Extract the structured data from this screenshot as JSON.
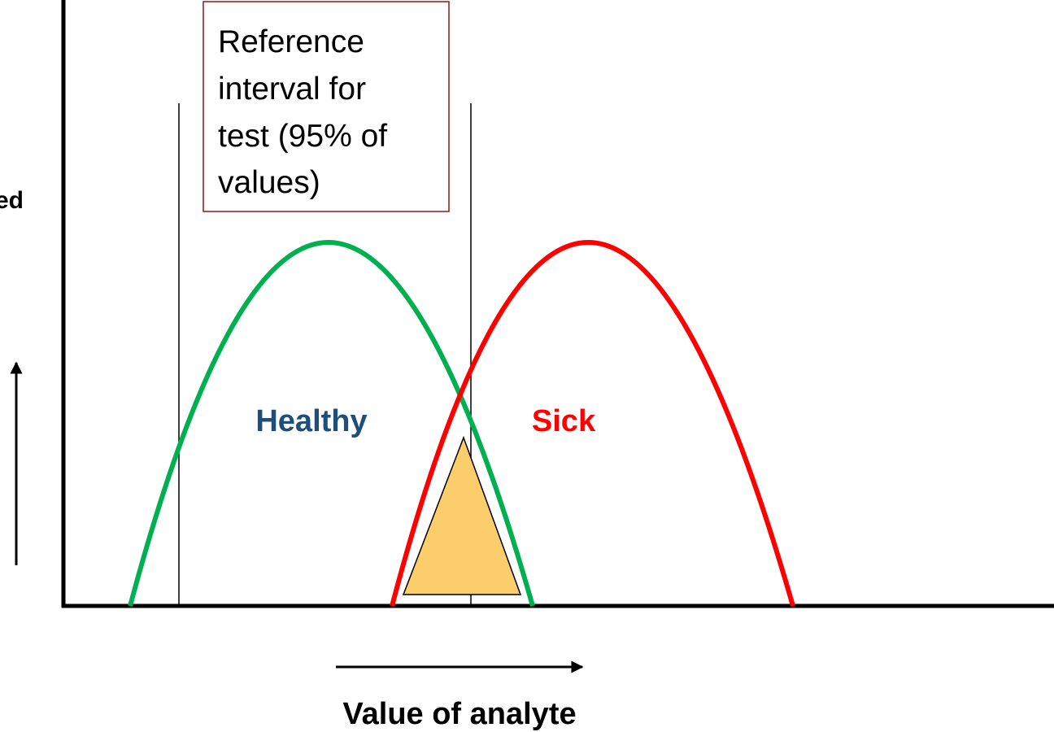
{
  "y_axis_label": "ed",
  "reference_box": {
    "lines": [
      "Reference",
      "interval for",
      "test (95% of",
      "values)"
    ]
  },
  "curves": {
    "healthy": "Healthy",
    "sick": "Sick"
  },
  "x_axis_label": "Value of analyte"
}
